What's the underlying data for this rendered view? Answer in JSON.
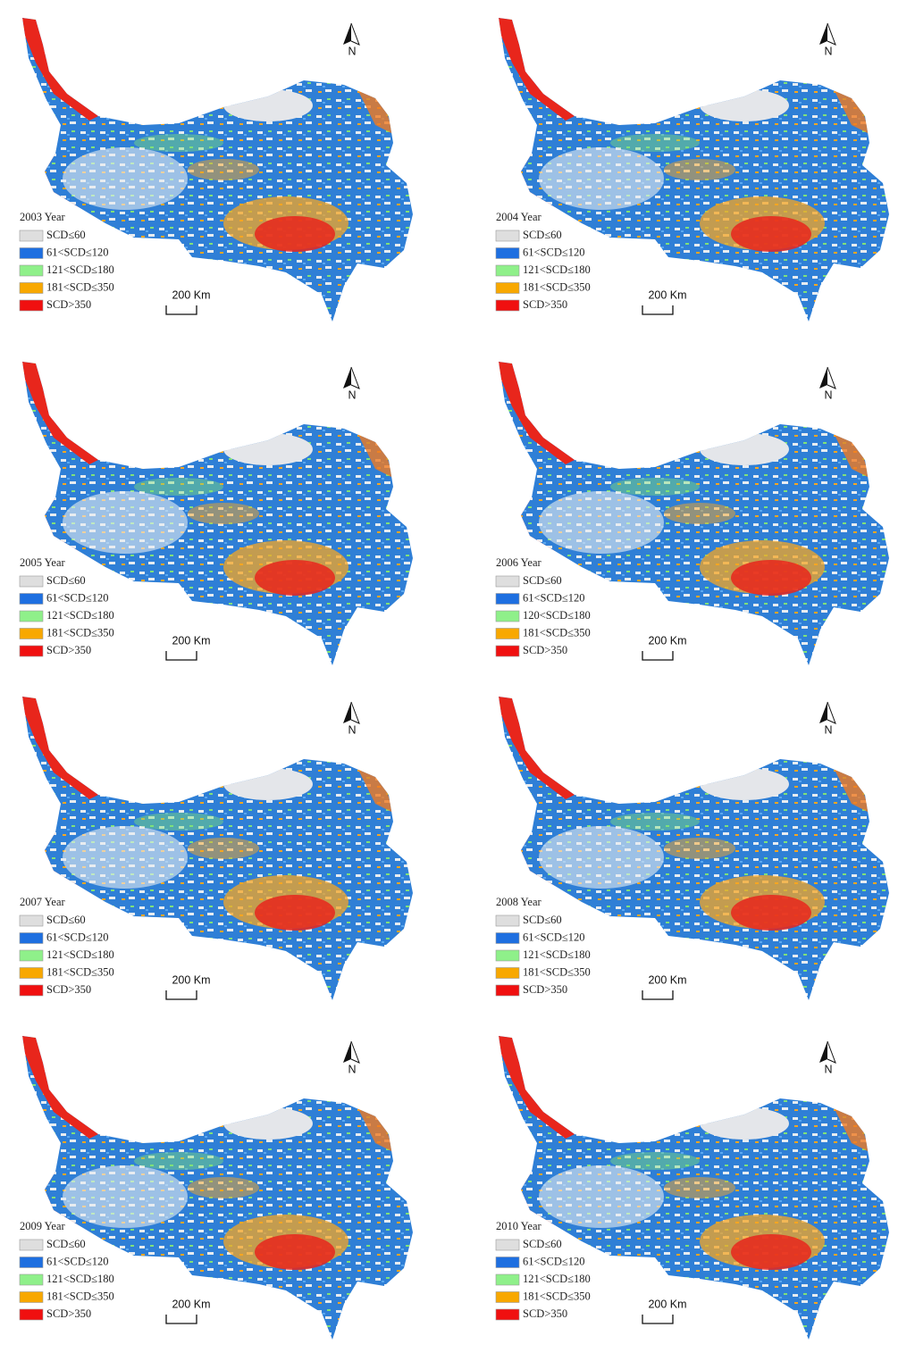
{
  "panels": [
    {
      "year_label": "2003 Year",
      "legend": [
        "SCD≤60",
        "61<SCD≤120",
        "121<SCD≤180",
        "181<SCD≤350",
        "SCD>350"
      ],
      "scale_label": "200 Km",
      "north_label": "N"
    },
    {
      "year_label": "2004 Year",
      "legend": [
        "SCD≤60",
        "61<SCD≤120",
        "121<SCD≤180",
        "181<SCD≤350",
        "SCD>350"
      ],
      "scale_label": "200 Km",
      "north_label": "N"
    },
    {
      "year_label": "2005 Year",
      "legend": [
        "SCD≤60",
        "61<SCD≤120",
        "121<SCD≤180",
        "181<SCD≤350",
        "SCD>350"
      ],
      "scale_label": "200 Km",
      "north_label": "N"
    },
    {
      "year_label": "2006 Year",
      "legend": [
        "SCD≤60",
        "61<SCD≤120",
        "120<SCD≤180",
        "181<SCD≤350",
        "SCD>350"
      ],
      "scale_label": "200 Km",
      "north_label": "N"
    },
    {
      "year_label": "2007 Year",
      "legend": [
        "SCD≤60",
        "61<SCD≤120",
        "121<SCD≤180",
        "181<SCD≤350",
        "SCD>350"
      ],
      "scale_label": "200 Km",
      "north_label": "N"
    },
    {
      "year_label": "2008 Year",
      "legend": [
        "SCD≤60",
        "61<SCD≤120",
        "121<SCD≤180",
        "181<SCD≤350",
        "SCD>350"
      ],
      "scale_label": "200 Km",
      "north_label": "N"
    },
    {
      "year_label": "2009 Year",
      "legend": [
        "SCD≤60",
        "61<SCD≤120",
        "121<SCD≤180",
        "181<SCD≤350",
        "SCD>350"
      ],
      "scale_label": "200 Km",
      "north_label": "N"
    },
    {
      "year_label": "2010 Year",
      "legend": [
        "SCD≤60",
        "61<SCD≤120",
        "121<SCD≤180",
        "181<SCD≤350",
        "SCD>350"
      ],
      "scale_label": "200 Km",
      "north_label": "N"
    }
  ]
}
